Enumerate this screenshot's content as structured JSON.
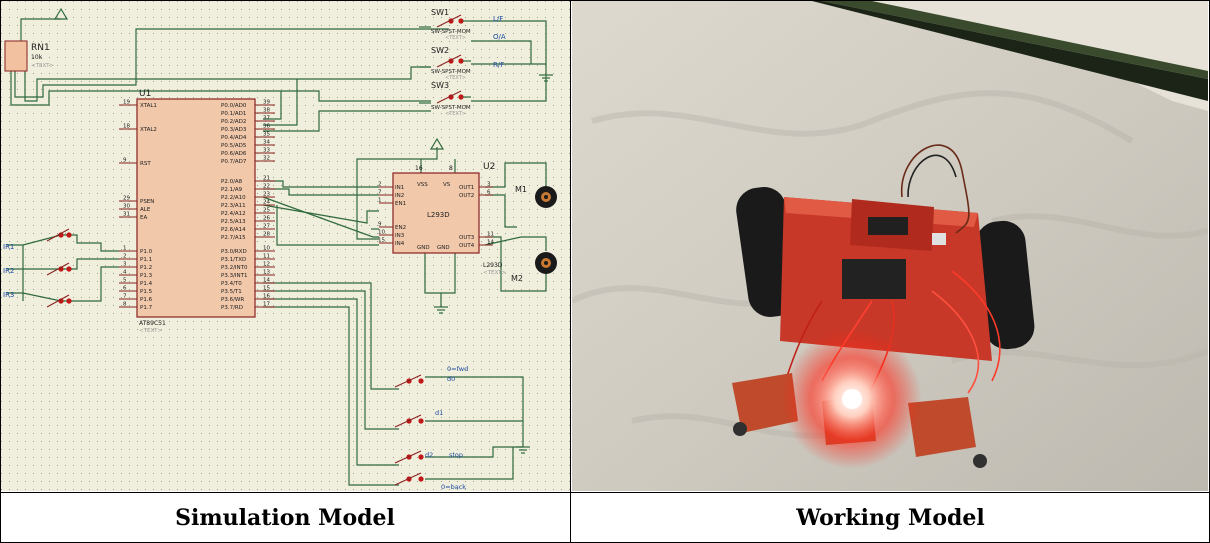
{
  "captions": {
    "simulation": "Simulation Model",
    "working": "Working Model"
  },
  "schematic": {
    "u1": {
      "ref": "U1",
      "part": "AT89C51",
      "text_tag": "<TEXT>",
      "left_pins": [
        {
          "num": "19",
          "name": "XTAL1"
        },
        {
          "num": "18",
          "name": "XTAL2"
        },
        {
          "num": "9",
          "name": "RST"
        },
        {
          "num": "29",
          "name": "PSEN"
        },
        {
          "num": "30",
          "name": "ALE"
        },
        {
          "num": "31",
          "name": "EA"
        },
        {
          "num": "1",
          "name": "P1.0"
        },
        {
          "num": "2",
          "name": "P1.1"
        },
        {
          "num": "3",
          "name": "P1.2"
        },
        {
          "num": "4",
          "name": "P1.3"
        },
        {
          "num": "5",
          "name": "P1.4"
        },
        {
          "num": "6",
          "name": "P1.5"
        },
        {
          "num": "7",
          "name": "P1.6"
        },
        {
          "num": "8",
          "name": "P1.7"
        }
      ],
      "right_pins": [
        {
          "num": "39",
          "name": "P0.0/AD0"
        },
        {
          "num": "38",
          "name": "P0.1/AD1"
        },
        {
          "num": "37",
          "name": "P0.2/AD2"
        },
        {
          "num": "36",
          "name": "P0.3/AD3"
        },
        {
          "num": "35",
          "name": "P0.4/AD4"
        },
        {
          "num": "34",
          "name": "P0.5/AD5"
        },
        {
          "num": "33",
          "name": "P0.6/AD6"
        },
        {
          "num": "32",
          "name": "P0.7/AD7"
        },
        {
          "num": "21",
          "name": "P2.0/A8"
        },
        {
          "num": "22",
          "name": "P2.1/A9"
        },
        {
          "num": "23",
          "name": "P2.2/A10"
        },
        {
          "num": "24",
          "name": "P2.3/A11"
        },
        {
          "num": "25",
          "name": "P2.4/A12"
        },
        {
          "num": "26",
          "name": "P2.5/A13"
        },
        {
          "num": "27",
          "name": "P2.6/A14"
        },
        {
          "num": "28",
          "name": "P2.7/A15"
        },
        {
          "num": "10",
          "name": "P3.0/RXD"
        },
        {
          "num": "11",
          "name": "P3.1/TXD"
        },
        {
          "num": "12",
          "name": "P3.2/INT0"
        },
        {
          "num": "13",
          "name": "P3.3/INT1"
        },
        {
          "num": "14",
          "name": "P3.4/T0"
        },
        {
          "num": "15",
          "name": "P3.5/T1"
        },
        {
          "num": "16",
          "name": "P3.6/WR"
        },
        {
          "num": "17",
          "name": "P3.7/RD"
        }
      ]
    },
    "u2": {
      "ref": "U2",
      "part": "L293D",
      "sub_label": "L293D",
      "text_tag": "<TEXT>",
      "top_pins": [
        "16",
        "8"
      ],
      "left_pins": [
        {
          "num": "2",
          "name": "IN1"
        },
        {
          "num": "7",
          "name": "IN2"
        },
        {
          "num": "1",
          "name": "EN1"
        },
        {
          "num": "9",
          "name": "EN2"
        },
        {
          "num": "10",
          "name": "IN3"
        },
        {
          "num": "15",
          "name": "IN4"
        }
      ],
      "right_pins": [
        {
          "num": "3",
          "name": "OUT1"
        },
        {
          "num": "6",
          "name": "OUT2"
        },
        {
          "num": "11",
          "name": "OUT3"
        },
        {
          "num": "14",
          "name": "OUT4"
        }
      ],
      "vss": "VSS",
      "vs": "VS",
      "gnd1": "GND",
      "gnd2": "GND"
    },
    "rn1": {
      "ref": "RN1",
      "value": "10k",
      "text_tag": "<TEXT>"
    },
    "switches": [
      {
        "ref": "SW1",
        "part": "SW-SPST-MOM",
        "text_tag": "<TEXT>",
        "net": "L/F"
      },
      {
        "ref": "SW2",
        "part": "SW-SPST-MOM",
        "text_tag": "<TEXT>",
        "net": "O/A"
      },
      {
        "ref": "SW3",
        "part": "SW-SPST-MOM",
        "text_tag": "<TEXT>",
        "net": "R/F"
      }
    ],
    "sensors": [
      "IR1",
      "IR2",
      "IR3"
    ],
    "motors": [
      "M1",
      "M2"
    ],
    "bottom_switches": [
      {
        "label": "0=fwd",
        "sub": "d0"
      },
      {
        "label": "d1",
        "sub": ""
      },
      {
        "label": "d2",
        "sub": "stop"
      },
      {
        "label": "0=back",
        "sub": ""
      }
    ]
  }
}
